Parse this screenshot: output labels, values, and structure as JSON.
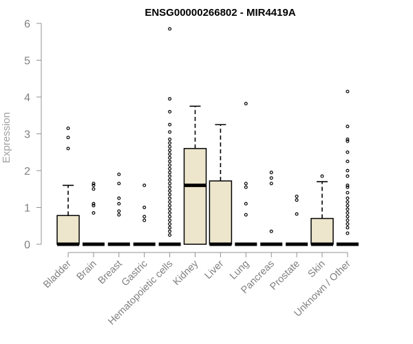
{
  "chart_data": {
    "type": "box",
    "title": "ENSG00000266802 - MIR4419A",
    "ylabel": "Expression",
    "xlabel": "",
    "ylim": [
      0,
      6
    ],
    "yticks": [
      "0",
      "1",
      "2",
      "3",
      "4",
      "5",
      "6"
    ],
    "box_fill": "#ede6cc",
    "box_stroke": "#000000",
    "categories": [
      "Bladder",
      "Brain",
      "Breast",
      "Gastric",
      "Hematopoietic cells",
      "Kidney",
      "Liver",
      "Lung",
      "Pancreas",
      "Prostate",
      "Skin",
      "Unknown / Other"
    ],
    "boxes": [
      {
        "q1": 0,
        "median": 0,
        "q3": 0.78,
        "whisker_low": 0,
        "whisker_high": 1.6,
        "outliers": [
          2.6,
          2.9,
          3.15
        ]
      },
      {
        "q1": 0,
        "median": 0,
        "q3": 0,
        "whisker_low": 0,
        "whisker_high": 0,
        "outliers": [
          0.85,
          1.05,
          1.1,
          1.5,
          1.6,
          1.65
        ]
      },
      {
        "q1": 0,
        "median": 0,
        "q3": 0,
        "whisker_low": 0,
        "whisker_high": 0,
        "outliers": [
          0.8,
          0.9,
          1.1,
          1.25,
          1.65,
          1.9
        ]
      },
      {
        "q1": 0,
        "median": 0,
        "q3": 0,
        "whisker_low": 0,
        "whisker_high": 0,
        "outliers": [
          0.65,
          0.75,
          1.0,
          1.6
        ]
      },
      {
        "q1": 0,
        "median": 0,
        "q3": 0,
        "whisker_low": 0,
        "whisker_high": 0,
        "outliers": [
          0.25,
          0.35,
          0.45,
          0.55,
          0.65,
          0.75,
          0.85,
          0.95,
          1.05,
          1.15,
          1.25,
          1.35,
          1.45,
          1.55,
          1.65,
          1.75,
          1.85,
          1.95,
          2.05,
          2.15,
          2.25,
          2.35,
          2.45,
          2.55,
          2.65,
          2.75,
          2.85,
          3.05,
          3.25,
          3.6,
          3.95,
          5.85
        ]
      },
      {
        "q1": 0,
        "median": 1.6,
        "q3": 2.6,
        "whisker_low": 0,
        "whisker_high": 3.75,
        "outliers": []
      },
      {
        "q1": 0,
        "median": 0,
        "q3": 1.72,
        "whisker_low": 0,
        "whisker_high": 3.25,
        "outliers": []
      },
      {
        "q1": 0,
        "median": 0,
        "q3": 0,
        "whisker_low": 0,
        "whisker_high": 0,
        "outliers": [
          0.8,
          1.1,
          1.55,
          1.65,
          3.82
        ]
      },
      {
        "q1": 0,
        "median": 0,
        "q3": 0,
        "whisker_low": 0,
        "whisker_high": 0,
        "outliers": [
          0.35,
          1.65,
          1.8,
          1.95
        ]
      },
      {
        "q1": 0,
        "median": 0,
        "q3": 0,
        "whisker_low": 0,
        "whisker_high": 0,
        "outliers": [
          0.82,
          1.2,
          1.3
        ]
      },
      {
        "q1": 0,
        "median": 0,
        "q3": 0.7,
        "whisker_low": 0,
        "whisker_high": 1.7,
        "outliers": [
          1.85
        ]
      },
      {
        "q1": 0,
        "median": 0,
        "q3": 0,
        "whisker_low": 0,
        "whisker_high": 0,
        "outliers": [
          0.3,
          0.45,
          0.55,
          0.65,
          0.75,
          0.85,
          0.95,
          1.05,
          1.15,
          1.25,
          1.4,
          1.55,
          1.6,
          1.85,
          2.0,
          2.25,
          2.5,
          2.8,
          2.85,
          3.2,
          4.15
        ]
      }
    ]
  }
}
